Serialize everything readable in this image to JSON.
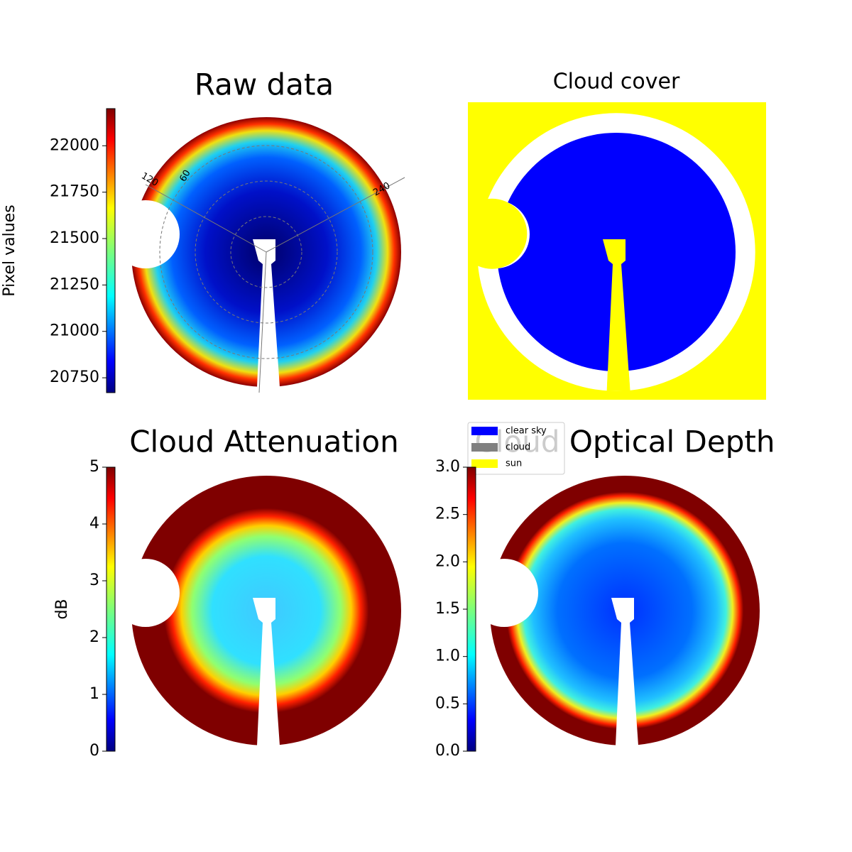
{
  "chart_data": [
    {
      "type": "image",
      "title": "Raw data",
      "colorbar_label": "Pixel values",
      "ylim": [
        20670,
        22200
      ],
      "yticks": [
        20750,
        21000,
        21250,
        21500,
        21750,
        22000
      ],
      "angle_labels": [
        "120",
        "60",
        "240"
      ]
    },
    {
      "type": "classes",
      "title": "Cloud cover",
      "series": [
        {
          "name": "clear sky",
          "color": "#0000ff"
        },
        {
          "name": "cloud",
          "color": "#808080"
        },
        {
          "name": "sun",
          "color": "#ffff00"
        }
      ]
    },
    {
      "type": "image",
      "title": "Cloud Attenuation",
      "colorbar_label": "dB",
      "ylim": [
        0,
        5
      ],
      "yticks": [
        0,
        1,
        2,
        3,
        4,
        5
      ]
    },
    {
      "type": "image",
      "title": "Cloud Optical Depth",
      "ylim": [
        0,
        3
      ],
      "yticks": [
        {
          "value": 0,
          "label": "0.0"
        },
        0.5,
        {
          "value": 1,
          "label": "1.0"
        },
        1.5,
        {
          "value": 2,
          "label": "2.0"
        },
        2.5,
        {
          "value": 3,
          "label": "3.0"
        }
      ]
    }
  ]
}
